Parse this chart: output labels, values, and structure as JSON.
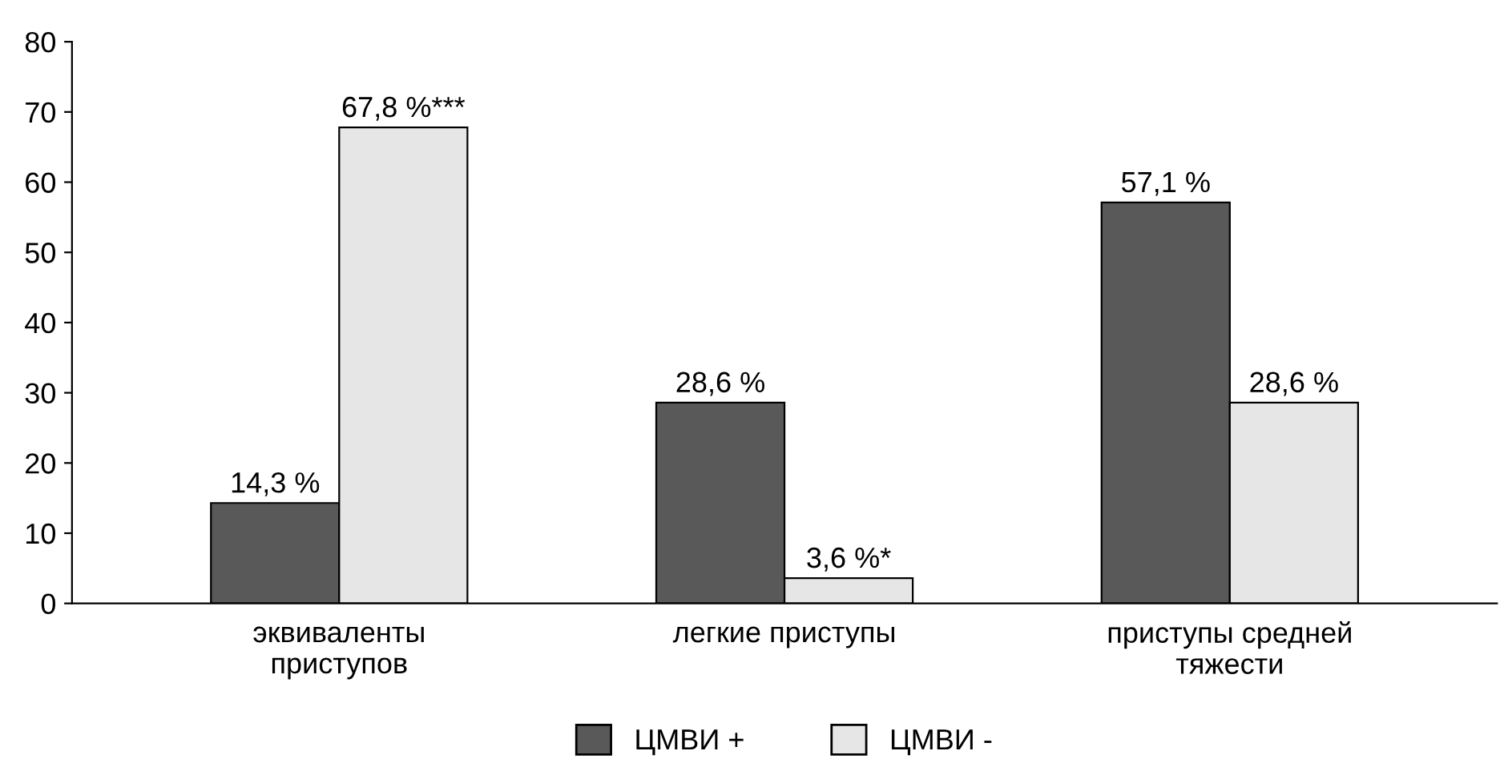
{
  "chart_data": {
    "type": "bar",
    "categories": [
      "эквиваленты\nприступов",
      "легкие приступы",
      "приступы средней\nтяжести"
    ],
    "series": [
      {
        "name": "ЦМВИ +",
        "color": "#595959",
        "values": [
          14.3,
          28.6,
          57.1
        ],
        "value_labels": [
          "14,3 %",
          "28,6 %",
          "57,1 %"
        ]
      },
      {
        "name": "ЦМВИ -",
        "color": "#e6e6e6",
        "values": [
          67.8,
          3.6,
          28.6
        ],
        "value_labels": [
          "67,8 %***",
          "3,6 %*",
          "28,6 %"
        ]
      }
    ],
    "ylim": [
      0,
      80
    ],
    "yticks": [
      0,
      10,
      20,
      30,
      40,
      50,
      60,
      70,
      80
    ],
    "grid": false,
    "legend": "bottom"
  }
}
